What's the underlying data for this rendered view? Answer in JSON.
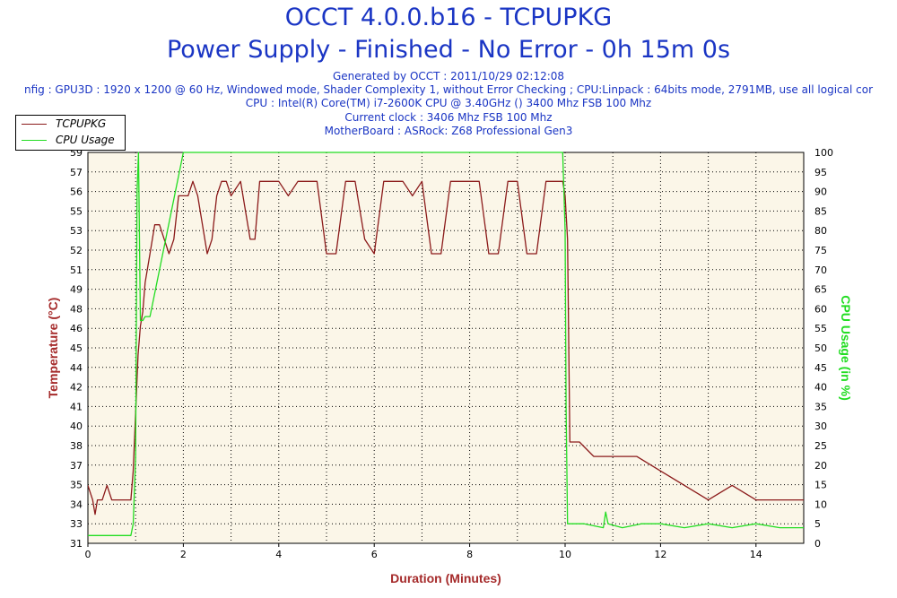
{
  "header": {
    "title": "OCCT 4.0.0.b16 - TCPUPKG",
    "subtitle": "Power Supply - Finished - No Error - 0h 15m 0s",
    "info_lines": [
      "Generated by OCCT : 2011/10/29 02:12:08",
      "nfig : GPU3D : 1920 x 1200 @ 60 Hz, Windowed mode, Shader Complexity 1, without Error Checking ; CPU:Linpack : 64bits mode, 2791MB, use all logical cor",
      "CPU : Intel(R) Core(TM) i7-2600K CPU @ 3.40GHz () 3400 Mhz FSB 100 Mhz",
      "Current clock : 3406 Mhz FSB 100 Mhz",
      "MotherBoard : ASRock: Z68 Professional Gen3"
    ]
  },
  "colors": {
    "title": "#1a35c4",
    "temperature": "#8b1a1a",
    "cpu_usage": "#22dd22",
    "plot_background": "#fbf6e8",
    "grid": "#000000",
    "axis_title": "#a52a2a"
  },
  "legend": {
    "items": [
      {
        "label": "TCPUPKG",
        "color": "#8b1a1a"
      },
      {
        "label": "CPU Usage",
        "color": "#22dd22"
      }
    ]
  },
  "chart_data": {
    "type": "line",
    "xlabel": "Duration (Minutes)",
    "ylabel_left": "Temperature (°C)",
    "ylabel_right": "CPU Usage (in %)",
    "xlim": [
      0,
      15
    ],
    "ylim_left": [
      31,
      58
    ],
    "ylim_right": [
      0,
      100
    ],
    "x_ticks": [
      "0",
      "2",
      "4",
      "6",
      "8",
      "10",
      "12",
      "14"
    ],
    "y_ticks_left": [
      "31",
      "33",
      "34",
      "35",
      "37",
      "38",
      "40",
      "41",
      "42",
      "44",
      "45",
      "46",
      "48",
      "49",
      "51",
      "52",
      "53",
      "55",
      "56",
      "57",
      "59"
    ],
    "y_ticks_right": [
      "0",
      "5",
      "10",
      "15",
      "20",
      "25",
      "30",
      "35",
      "40",
      "45",
      "50",
      "55",
      "60",
      "65",
      "70",
      "75",
      "80",
      "85",
      "90",
      "95",
      "100"
    ],
    "grid": true,
    "legend_position": "top-left",
    "series": [
      {
        "name": "TCPUPKG",
        "axis": "left",
        "x": [
          0,
          0.1,
          0.15,
          0.2,
          0.3,
          0.4,
          0.5,
          0.6,
          0.7,
          0.8,
          0.9,
          0.95,
          1.0,
          1.05,
          1.1,
          1.15,
          1.2,
          1.3,
          1.4,
          1.5,
          1.6,
          1.7,
          1.8,
          1.9,
          2.0,
          2.1,
          2.2,
          2.3,
          2.4,
          2.5,
          2.6,
          2.7,
          2.8,
          2.9,
          3.0,
          3.2,
          3.4,
          3.5,
          3.6,
          3.8,
          4.0,
          4.2,
          4.4,
          4.6,
          4.8,
          5.0,
          5.2,
          5.4,
          5.6,
          5.8,
          6.0,
          6.2,
          6.4,
          6.6,
          6.8,
          7.0,
          7.2,
          7.4,
          7.6,
          7.8,
          8.0,
          8.2,
          8.4,
          8.6,
          8.8,
          9.0,
          9.2,
          9.4,
          9.6,
          9.8,
          9.95,
          10.0,
          10.05,
          10.1,
          10.3,
          10.6,
          11.0,
          11.5,
          12.0,
          12.5,
          13.0,
          13.5,
          14.0,
          14.5,
          15.0
        ],
        "values": [
          35,
          34,
          33,
          34,
          34,
          35,
          34,
          34,
          34,
          34,
          34,
          36,
          40,
          44,
          46,
          47,
          49,
          51,
          53,
          53,
          52,
          51,
          52,
          55,
          55,
          55,
          56,
          55,
          53,
          51,
          52,
          55,
          56,
          56,
          55,
          56,
          52,
          52,
          56,
          56,
          56,
          55,
          56,
          56,
          56,
          51,
          51,
          56,
          56,
          52,
          51,
          56,
          56,
          56,
          55,
          56,
          51,
          51,
          56,
          56,
          56,
          56,
          51,
          51,
          56,
          56,
          51,
          51,
          56,
          56,
          56,
          55,
          52,
          38,
          38,
          37,
          37,
          37,
          36,
          35,
          34,
          35,
          34,
          34,
          34
        ]
      },
      {
        "name": "CPU Usage",
        "axis": "right",
        "x": [
          0,
          0.2,
          0.4,
          0.6,
          0.8,
          0.9,
          0.95,
          1.0,
          1.03,
          1.06,
          1.1,
          1.15,
          1.2,
          1.3,
          2,
          3,
          4,
          5,
          6,
          7,
          8,
          9,
          9.95,
          10.0,
          10.02,
          10.05,
          10.1,
          10.4,
          10.8,
          10.85,
          10.9,
          11.2,
          11.6,
          12,
          12.5,
          13,
          13.5,
          14,
          14.5,
          15.0
        ],
        "values": [
          2,
          2,
          2,
          2,
          2,
          2,
          5,
          22,
          90,
          100,
          57,
          57,
          58,
          58,
          100,
          100,
          100,
          100,
          100,
          100,
          100,
          100,
          100,
          80,
          35,
          5,
          5,
          5,
          4,
          8,
          5,
          4,
          5,
          5,
          4,
          5,
          4,
          5,
          4,
          4
        ]
      }
    ]
  }
}
